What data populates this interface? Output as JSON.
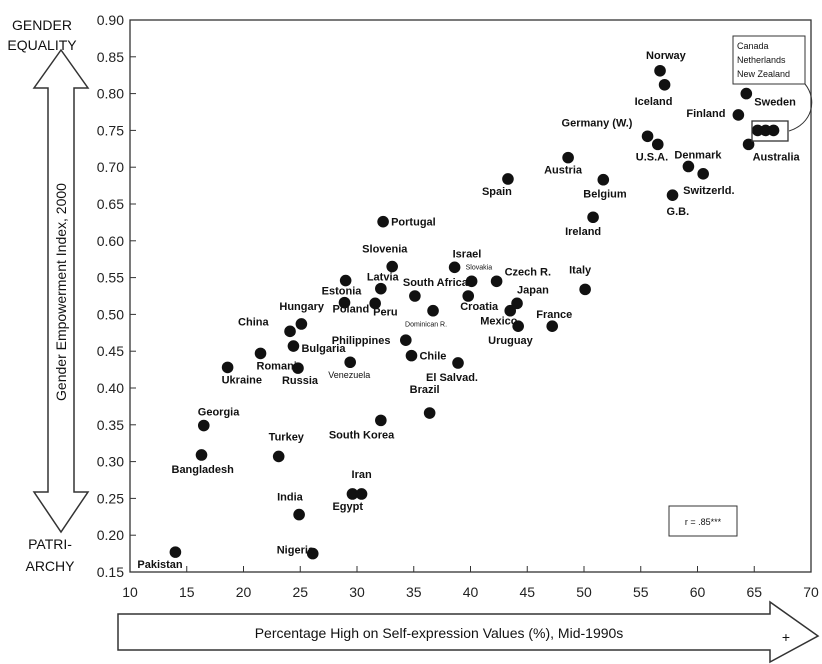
{
  "chart_data": {
    "type": "scatter",
    "title": "",
    "xlabel": "Percentage High on Self-expression Values (%), Mid-1990s",
    "xlabel_plus": "+",
    "ylabel": "Gender Empowerment Index, 2000",
    "y_top_label": [
      "GENDER",
      "EQUALITY"
    ],
    "y_bottom_label": [
      "PATRI-",
      "ARCHY"
    ],
    "xlim": [
      10,
      70
    ],
    "ylim": [
      0.15,
      0.9
    ],
    "xticks": [
      "10",
      "15",
      "20",
      "25",
      "30",
      "35",
      "40",
      "45",
      "50",
      "55",
      "60",
      "65",
      "70"
    ],
    "yticks": [
      "0.15",
      "0.20",
      "0.25",
      "0.30",
      "0.35",
      "0.40",
      "0.45",
      "0.50",
      "0.55",
      "0.60",
      "0.65",
      "0.70",
      "0.75",
      "0.80",
      "0.85",
      "0.90"
    ],
    "correlation_label": "r = .85***",
    "legend_box": [
      "Canada",
      "Netherlands",
      "New Zealand"
    ],
    "grid": false,
    "points": [
      {
        "label": "Pakistan",
        "x": 14,
        "y": 0.177
      },
      {
        "label": "Nigeria",
        "x": 26.1,
        "y": 0.175
      },
      {
        "label": "India",
        "x": 24.9,
        "y": 0.228
      },
      {
        "label": "Egypt",
        "x": 29.6,
        "y": 0.256
      },
      {
        "label": "Iran",
        "x": 30.4,
        "y": 0.256
      },
      {
        "label": "Bangladesh",
        "x": 16.3,
        "y": 0.309
      },
      {
        "label": "Turkey",
        "x": 23.1,
        "y": 0.307
      },
      {
        "label": "Georgia",
        "x": 16.5,
        "y": 0.349
      },
      {
        "label": "South Korea",
        "x": 32.1,
        "y": 0.356
      },
      {
        "label": "Brazil",
        "x": 36.4,
        "y": 0.366
      },
      {
        "label": "Ukraine",
        "x": 18.6,
        "y": 0.428
      },
      {
        "label": "Romania",
        "x": 21.5,
        "y": 0.447
      },
      {
        "label": "Russia",
        "x": 24.8,
        "y": 0.427
      },
      {
        "label": "Bulgaria",
        "x": 24.4,
        "y": 0.457
      },
      {
        "label": "China",
        "x": 24.1,
        "y": 0.477
      },
      {
        "label": "Hungary",
        "x": 25.1,
        "y": 0.487
      },
      {
        "label": "Venezuela",
        "x": 29.4,
        "y": 0.435
      },
      {
        "label": "Chile",
        "x": 34.8,
        "y": 0.444
      },
      {
        "label": "El Salvad.",
        "x": 38.9,
        "y": 0.434
      },
      {
        "label": "Philippines",
        "x": 34.3,
        "y": 0.465
      },
      {
        "label": "Poland",
        "x": 28.9,
        "y": 0.516
      },
      {
        "label": "Peru",
        "x": 31.6,
        "y": 0.515
      },
      {
        "label": "Dominican R.",
        "x": 36.7,
        "y": 0.505
      },
      {
        "label": "Estonia",
        "x": 29,
        "y": 0.546
      },
      {
        "label": "Latvia",
        "x": 32.1,
        "y": 0.535
      },
      {
        "label": "Slovenia",
        "x": 33.1,
        "y": 0.565
      },
      {
        "label": "South Africa",
        "x": 35.1,
        "y": 0.525
      },
      {
        "label": "Israel",
        "x": 38.6,
        "y": 0.564
      },
      {
        "label": "Slovakia",
        "x": 40.1,
        "y": 0.545
      },
      {
        "label": "Croatia",
        "x": 39.8,
        "y": 0.525
      },
      {
        "label": "Czech R.",
        "x": 42.3,
        "y": 0.545
      },
      {
        "label": "Mexico",
        "x": 43.5,
        "y": 0.505
      },
      {
        "label": "Japan",
        "x": 44.1,
        "y": 0.515
      },
      {
        "label": "Uruguay",
        "x": 44.2,
        "y": 0.484
      },
      {
        "label": "France",
        "x": 47.2,
        "y": 0.484
      },
      {
        "label": "Italy",
        "x": 50.1,
        "y": 0.534
      },
      {
        "label": "Portugal",
        "x": 32.3,
        "y": 0.626
      },
      {
        "label": "Ireland",
        "x": 50.8,
        "y": 0.632
      },
      {
        "label": "Spain",
        "x": 43.3,
        "y": 0.684
      },
      {
        "label": "Belgium",
        "x": 51.7,
        "y": 0.683
      },
      {
        "label": "Austria",
        "x": 48.6,
        "y": 0.713
      },
      {
        "label": "G.B.",
        "x": 57.8,
        "y": 0.662
      },
      {
        "label": "Denmark",
        "x": 59.2,
        "y": 0.701
      },
      {
        "label": "Switzerld.",
        "x": 60.5,
        "y": 0.691
      },
      {
        "label": "U.S.A.",
        "x": 56.5,
        "y": 0.731
      },
      {
        "label": "Germany (W.)",
        "x": 55.6,
        "y": 0.742
      },
      {
        "label": "Australia",
        "x": 64.5,
        "y": 0.731
      },
      {
        "label": "Finland",
        "x": 63.6,
        "y": 0.771
      },
      {
        "label": "Sweden",
        "x": 64.3,
        "y": 0.8
      },
      {
        "label": "Iceland",
        "x": 57.1,
        "y": 0.812
      },
      {
        "label": "Norway",
        "x": 56.7,
        "y": 0.831
      },
      {
        "label": "",
        "x": 65.3,
        "y": 0.75
      },
      {
        "label": "",
        "x": 66.0,
        "y": 0.75
      },
      {
        "label": "",
        "x": 66.7,
        "y": 0.75
      }
    ]
  },
  "colors": {
    "point": "#111111",
    "axis": "#333333",
    "background": "#ffffff"
  }
}
